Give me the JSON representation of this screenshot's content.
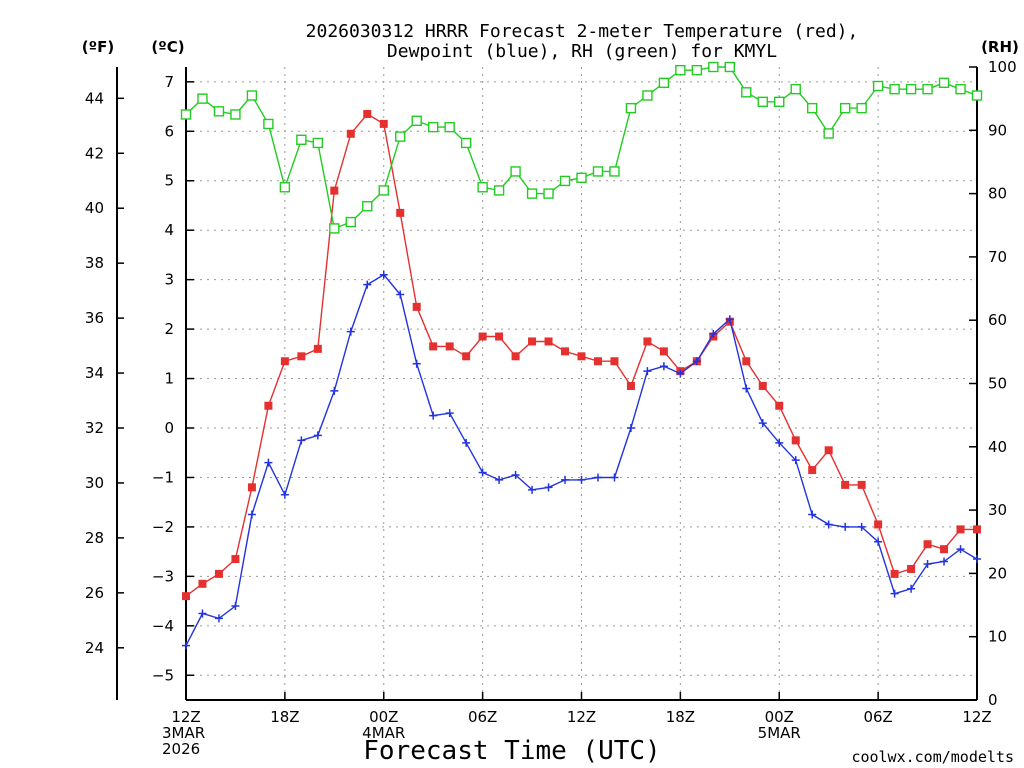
{
  "chart_data": {
    "type": "line",
    "title": [
      "2026030312 HRRR Forecast 2-meter Temperature (red),",
      "Dewpoint (blue), RH (green) for KMYL"
    ],
    "xlabel": "Forecast Time (UTC)",
    "credit": "coolwx.com/modelts",
    "units": {
      "fahrenheit": "(ºF)",
      "celsius": "(ºC)",
      "rh": "(RH)"
    },
    "x_hours": [
      0,
      1,
      2,
      3,
      4,
      5,
      6,
      7,
      8,
      9,
      10,
      11,
      12,
      13,
      14,
      15,
      16,
      17,
      18,
      19,
      20,
      21,
      22,
      23,
      24,
      25,
      26,
      27,
      28,
      29,
      30,
      31,
      32,
      33,
      34,
      35,
      36,
      37,
      38,
      39,
      40,
      41,
      42,
      43,
      44,
      45,
      46,
      47,
      48
    ],
    "x_ticks": [
      {
        "hour": 0,
        "lines": [
          "12Z",
          "3MAR",
          "2026"
        ]
      },
      {
        "hour": 6,
        "lines": [
          "18Z"
        ]
      },
      {
        "hour": 12,
        "lines": [
          "00Z",
          "4MAR"
        ]
      },
      {
        "hour": 18,
        "lines": [
          "06Z"
        ]
      },
      {
        "hour": 24,
        "lines": [
          "12Z"
        ]
      },
      {
        "hour": 30,
        "lines": [
          "18Z"
        ]
      },
      {
        "hour": 36,
        "lines": [
          "00Z",
          "5MAR"
        ]
      },
      {
        "hour": 42,
        "lines": [
          "06Z"
        ]
      },
      {
        "hour": 48,
        "lines": [
          "12Z"
        ]
      }
    ],
    "ylim_c": [
      -5.5,
      7.3
    ],
    "ylim_rh": [
      0,
      100
    ],
    "y_ticks_c": [
      -5,
      -4,
      -3,
      -2,
      -1,
      0,
      1,
      2,
      3,
      4,
      5,
      6,
      7
    ],
    "y_ticks_f": [
      24,
      26,
      28,
      30,
      32,
      34,
      36,
      38,
      40,
      42,
      44
    ],
    "y_ticks_rh": [
      0,
      10,
      20,
      30,
      40,
      50,
      60,
      70,
      80,
      90,
      100
    ],
    "grid": true,
    "colors": {
      "temperature": "#e53030",
      "dewpoint": "#2233dd",
      "rh": "#22cc22",
      "credit": "#e03030"
    },
    "series": [
      {
        "name": "Temperature",
        "axis": "C",
        "marker": "filled-square",
        "values": [
          -3.4,
          -3.15,
          -2.95,
          -2.65,
          -1.2,
          0.45,
          1.35,
          1.45,
          1.6,
          4.8,
          5.95,
          6.35,
          6.15,
          4.35,
          2.45,
          1.65,
          1.65,
          1.45,
          1.85,
          1.85,
          1.45,
          1.75,
          1.75,
          1.55,
          1.45,
          1.35,
          1.35,
          0.85,
          1.75,
          1.55,
          1.15,
          1.35,
          1.85,
          2.15,
          1.35,
          0.85,
          0.45,
          -0.25,
          -0.85,
          -0.45,
          -1.15,
          -1.15,
          -1.95,
          -2.95,
          -2.85,
          -2.35,
          -2.45,
          -2.05,
          -2.05
        ]
      },
      {
        "name": "Dewpoint",
        "axis": "C",
        "marker": "plus",
        "values": [
          -4.4,
          -3.75,
          -3.85,
          -3.6,
          -1.75,
          -0.7,
          -1.35,
          -0.25,
          -0.15,
          0.75,
          1.95,
          2.9,
          3.1,
          2.7,
          1.3,
          0.25,
          0.3,
          -0.3,
          -0.9,
          -1.05,
          -0.95,
          -1.25,
          -1.2,
          -1.05,
          -1.05,
          -1.0,
          -1.0,
          0.0,
          1.15,
          1.25,
          1.1,
          1.35,
          1.9,
          2.2,
          0.8,
          0.1,
          -0.3,
          -0.65,
          -1.75,
          -1.95,
          -2.0,
          -2.0,
          -2.3,
          -3.35,
          -3.25,
          -2.75,
          -2.7,
          -2.45,
          -2.65
        ]
      },
      {
        "name": "RH",
        "axis": "RH",
        "marker": "open-square",
        "values": [
          92.5,
          95,
          93,
          92.5,
          95.5,
          91,
          81,
          88.5,
          88,
          74.5,
          75.5,
          78,
          80.5,
          89,
          91.5,
          90.5,
          90.5,
          88,
          81,
          80.5,
          83.5,
          80,
          80,
          82,
          82.5,
          83.5,
          83.5,
          93.5,
          95.5,
          97.5,
          99.5,
          99.5,
          100,
          100,
          96,
          94.5,
          94.5,
          96.5,
          93.5,
          89.5,
          93.5,
          93.5,
          97,
          96.5,
          96.5,
          96.5,
          97.5,
          96.5,
          95.5
        ]
      }
    ]
  }
}
